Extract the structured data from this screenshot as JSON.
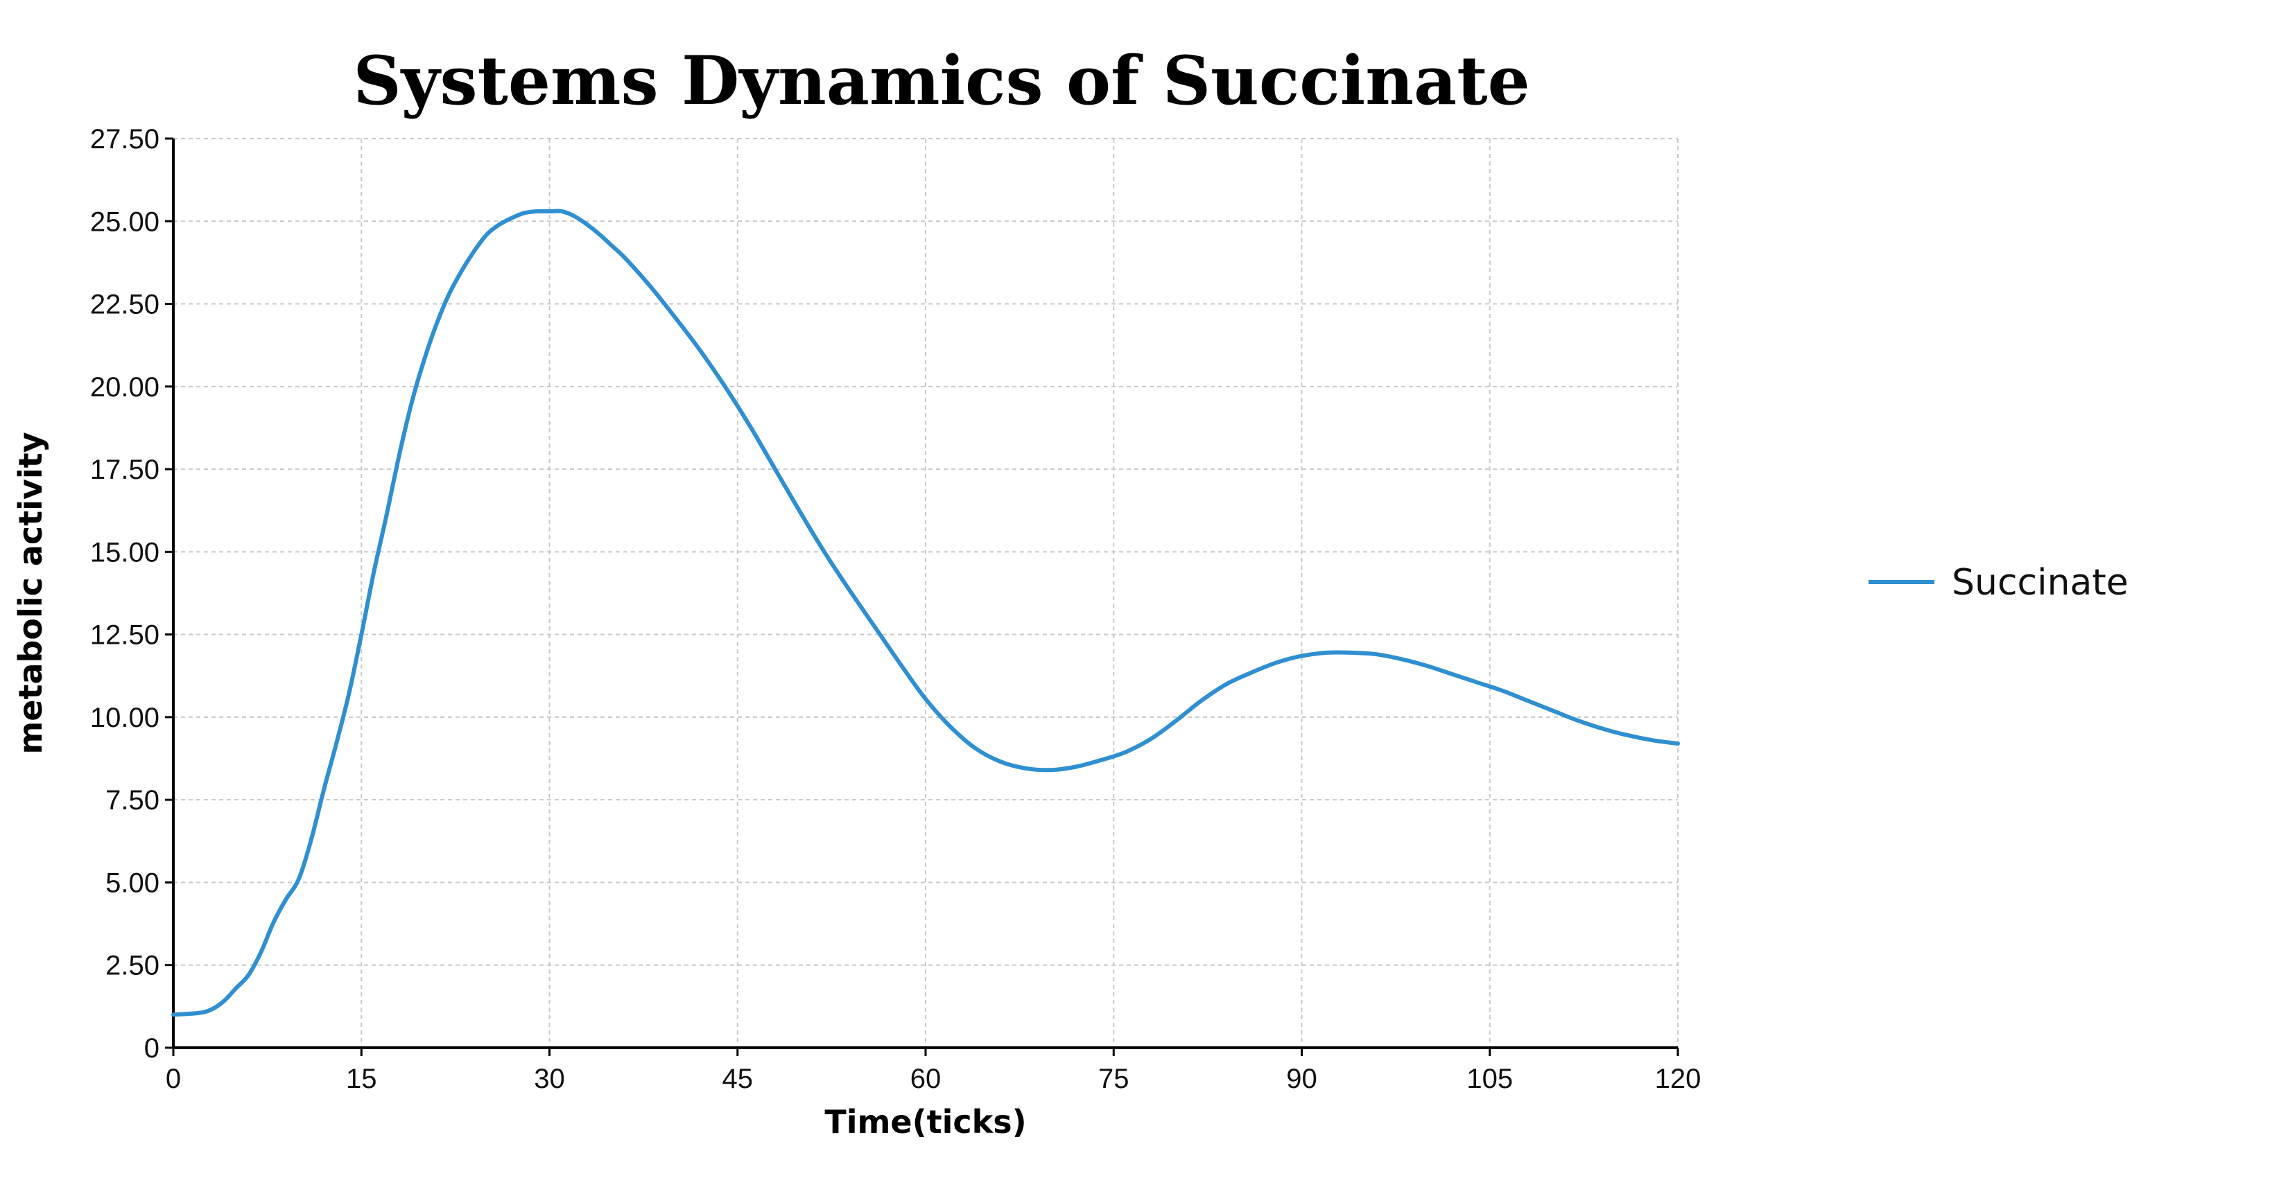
{
  "chart_data": {
    "type": "line",
    "title": "Systems Dynamics of Succinate",
    "xlabel": "Time(ticks)",
    "ylabel": "metabolic activity",
    "xlim": [
      0,
      120
    ],
    "ylim": [
      0,
      27.5
    ],
    "xticks": [
      0,
      15,
      30,
      45,
      60,
      75,
      90,
      105,
      120
    ],
    "yticks": [
      0,
      2.5,
      5,
      7.5,
      10,
      12.5,
      15,
      17.5,
      20,
      22.5,
      25,
      27.5
    ],
    "ytick_labels": [
      "0",
      "2.50",
      "5.00",
      "7.50",
      "10.00",
      "12.50",
      "15.00",
      "17.50",
      "20.00",
      "22.50",
      "25.00",
      "27.50"
    ],
    "grid": true,
    "legend_position": "right",
    "series": [
      {
        "name": "Succinate",
        "color": "#2f8fd0",
        "x": [
          0,
          2,
          3,
          4,
          5,
          6,
          7,
          8,
          9,
          10,
          11,
          12,
          13,
          14,
          15,
          16,
          17,
          18,
          19,
          20,
          21,
          22,
          23,
          24,
          25,
          26,
          27,
          28,
          29,
          30,
          31,
          32,
          33,
          34,
          35,
          36,
          38,
          40,
          42,
          44,
          46,
          48,
          50,
          52,
          54,
          56,
          58,
          60,
          62,
          64,
          66,
          68,
          70,
          72,
          74,
          76,
          78,
          80,
          82,
          84,
          86,
          88,
          90,
          92,
          94,
          96,
          98,
          100,
          102,
          104,
          106,
          108,
          110,
          112,
          114,
          116,
          118,
          120
        ],
        "y": [
          1.0,
          1.05,
          1.15,
          1.4,
          1.8,
          2.2,
          2.9,
          3.8,
          4.5,
          5.1,
          6.3,
          7.8,
          9.2,
          10.7,
          12.5,
          14.4,
          16.1,
          17.9,
          19.5,
          20.8,
          21.9,
          22.8,
          23.5,
          24.1,
          24.6,
          24.9,
          25.1,
          25.25,
          25.3,
          25.3,
          25.3,
          25.15,
          24.9,
          24.6,
          24.25,
          23.9,
          23.05,
          22.1,
          21.1,
          20.0,
          18.8,
          17.5,
          16.2,
          14.95,
          13.8,
          12.7,
          11.6,
          10.55,
          9.7,
          9.05,
          8.65,
          8.45,
          8.4,
          8.5,
          8.7,
          8.95,
          9.35,
          9.9,
          10.5,
          11.0,
          11.35,
          11.65,
          11.85,
          11.95,
          11.95,
          11.9,
          11.75,
          11.55,
          11.3,
          11.05,
          10.8,
          10.5,
          10.2,
          9.9,
          9.65,
          9.45,
          9.3,
          9.2
        ]
      }
    ]
  }
}
